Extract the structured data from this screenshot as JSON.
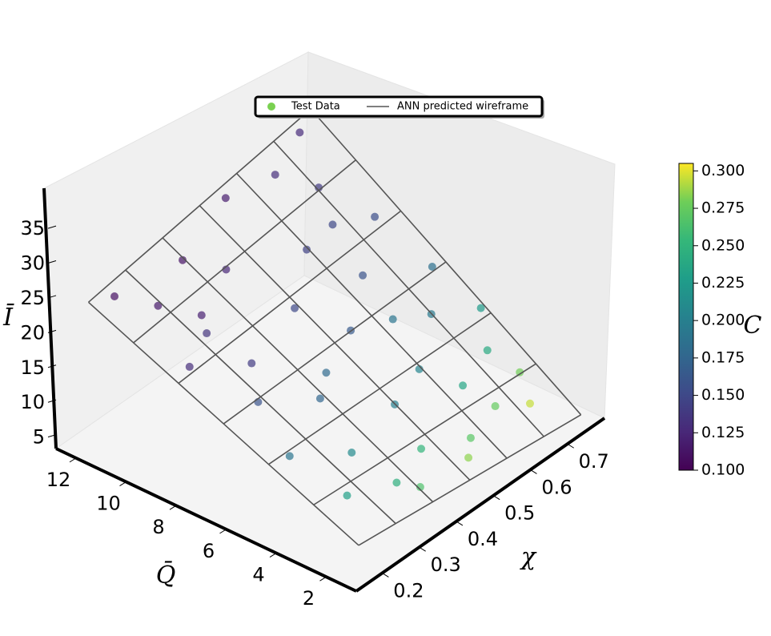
{
  "chart_data": {
    "type": "scatter3d",
    "xlabel": "χ",
    "ylabel": "Q̄",
    "zlabel": "Ī",
    "clabel": "C",
    "xlim": [
      0.13,
      0.8
    ],
    "ylim": [
      0.8,
      12.8
    ],
    "zlim": [
      3,
      41
    ],
    "xticks": [
      0.2,
      0.3,
      0.4,
      0.5,
      0.6,
      0.7
    ],
    "yticks": [
      2,
      4,
      6,
      8,
      10,
      12
    ],
    "zticks": [
      5,
      10,
      15,
      20,
      25,
      30,
      35
    ],
    "colormap": "viridis",
    "clim": [
      0.1,
      0.305
    ],
    "cticks": [
      {
        "value": 0.1,
        "label": "0.100"
      },
      {
        "value": 0.125,
        "label": "0.125"
      },
      {
        "value": 0.15,
        "label": "0.150"
      },
      {
        "value": 0.175,
        "label": "0.175"
      },
      {
        "value": 0.2,
        "label": "0.200"
      },
      {
        "value": 0.225,
        "label": "0.225"
      },
      {
        "value": 0.25,
        "label": "0.250"
      },
      {
        "value": 0.275,
        "label": "0.275"
      },
      {
        "value": 0.3,
        "label": "0.300"
      }
    ],
    "series": [
      {
        "name": "Test Data",
        "color": "#7ad151",
        "x": [
          0.2,
          0.25,
          0.3,
          0.35,
          0.4,
          0.5,
          0.6,
          0.7,
          0.65,
          0.55,
          0.45,
          0.3,
          0.2,
          0.25,
          0.35,
          0.5,
          0.6,
          0.7,
          0.72,
          0.65,
          0.55,
          0.45,
          0.3,
          0.2,
          0.22,
          0.32,
          0.42,
          0.52,
          0.62,
          0.72,
          0.7,
          0.6,
          0.75,
          0.68,
          0.4,
          0.28,
          0.62,
          0.48,
          0.35,
          0.58
        ],
        "y": [
          11.5,
          10.5,
          9.5,
          11,
          10,
          11.5,
          11,
          11.5,
          10,
          9,
          8,
          7.5,
          8.5,
          6.5,
          5.5,
          6.5,
          7.5,
          8.5,
          6.5,
          5.5,
          4.5,
          4,
          3.5,
          4.5,
          2.5,
          2,
          2.5,
          2,
          2.5,
          3,
          4,
          3.5,
          5,
          2,
          6,
          9,
          9,
          1.5,
          1.5,
          6
        ],
        "z": [
          24.5,
          23,
          21.5,
          25,
          23.5,
          27.5,
          28,
          29.5,
          26,
          22.5,
          19.5,
          18,
          19.5,
          16,
          14.5,
          17,
          19.5,
          22.5,
          18,
          15.5,
          13,
          12.5,
          12,
          13.5,
          10.5,
          9.5,
          9.8,
          8.5,
          8.5,
          8.8,
          11,
          10.5,
          13.5,
          7.5,
          15.5,
          20.5,
          23.5,
          8,
          8.6,
          16.5
        ],
        "c": [
          0.11,
          0.115,
          0.12,
          0.112,
          0.125,
          0.118,
          0.13,
          0.128,
          0.14,
          0.145,
          0.15,
          0.14,
          0.13,
          0.16,
          0.175,
          0.165,
          0.16,
          0.155,
          0.185,
          0.195,
          0.205,
          0.2,
          0.21,
          0.19,
          0.23,
          0.245,
          0.25,
          0.27,
          0.275,
          0.28,
          0.24,
          0.235,
          0.225,
          0.295,
          0.18,
          0.135,
          0.15,
          0.285,
          0.265,
          0.19
        ]
      },
      {
        "name": "ANN predicted wireframe",
        "color": "#555555",
        "x_grid": [
          0.15,
          0.25,
          0.35,
          0.45,
          0.55,
          0.65,
          0.75
        ],
        "y_grid": [
          1,
          2.8,
          4.6,
          6.4,
          8.2,
          10,
          11.8
        ],
        "z": [
          [
            8.5,
            7.92,
            7.33,
            6.75,
            6.17,
            5.58,
            5.0
          ],
          [
            11.25,
            10.92,
            10.58,
            10.25,
            9.92,
            9.58,
            9.25
          ],
          [
            14.0,
            13.92,
            13.83,
            13.75,
            13.67,
            13.58,
            13.5
          ],
          [
            16.75,
            16.92,
            17.08,
            17.25,
            17.42,
            17.58,
            17.75
          ],
          [
            19.5,
            19.92,
            20.33,
            20.75,
            21.17,
            21.58,
            22.0
          ],
          [
            22.25,
            22.92,
            23.58,
            24.25,
            24.92,
            25.58,
            26.25
          ],
          [
            25.0,
            25.92,
            26.83,
            27.75,
            28.67,
            29.58,
            30.5
          ]
        ]
      }
    ]
  }
}
